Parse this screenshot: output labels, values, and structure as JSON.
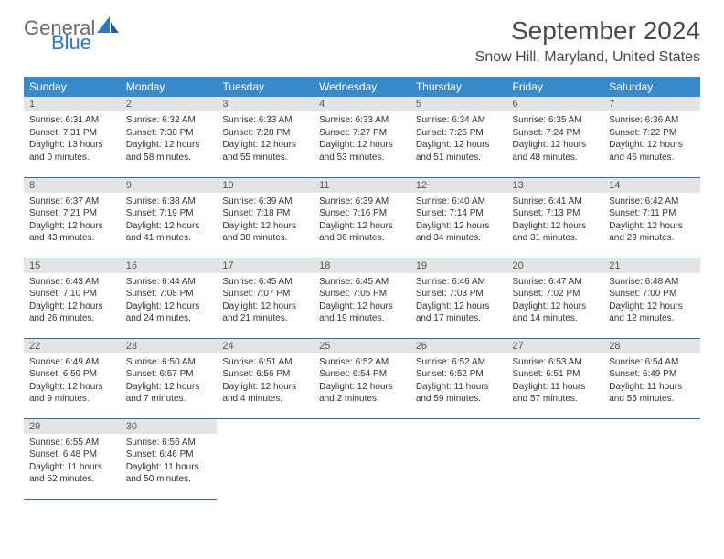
{
  "brand": {
    "part1": "General",
    "part2": "Blue"
  },
  "title": "September 2024",
  "location": "Snow Hill, Maryland, United States",
  "colors": {
    "header_bg": "#3a8ac9",
    "header_text": "#ffffff",
    "daynum_bg": "#e4e4e4",
    "row_border": "#3a6a9a",
    "logo_gray": "#6b6b6b",
    "logo_blue": "#2e78c2"
  },
  "weekdays": [
    "Sunday",
    "Monday",
    "Tuesday",
    "Wednesday",
    "Thursday",
    "Friday",
    "Saturday"
  ],
  "days": [
    {
      "n": 1,
      "sunrise": "6:31 AM",
      "sunset": "7:31 PM",
      "daylight": "13 hours and 0 minutes."
    },
    {
      "n": 2,
      "sunrise": "6:32 AM",
      "sunset": "7:30 PM",
      "daylight": "12 hours and 58 minutes."
    },
    {
      "n": 3,
      "sunrise": "6:33 AM",
      "sunset": "7:28 PM",
      "daylight": "12 hours and 55 minutes."
    },
    {
      "n": 4,
      "sunrise": "6:33 AM",
      "sunset": "7:27 PM",
      "daylight": "12 hours and 53 minutes."
    },
    {
      "n": 5,
      "sunrise": "6:34 AM",
      "sunset": "7:25 PM",
      "daylight": "12 hours and 51 minutes."
    },
    {
      "n": 6,
      "sunrise": "6:35 AM",
      "sunset": "7:24 PM",
      "daylight": "12 hours and 48 minutes."
    },
    {
      "n": 7,
      "sunrise": "6:36 AM",
      "sunset": "7:22 PM",
      "daylight": "12 hours and 46 minutes."
    },
    {
      "n": 8,
      "sunrise": "6:37 AM",
      "sunset": "7:21 PM",
      "daylight": "12 hours and 43 minutes."
    },
    {
      "n": 9,
      "sunrise": "6:38 AM",
      "sunset": "7:19 PM",
      "daylight": "12 hours and 41 minutes."
    },
    {
      "n": 10,
      "sunrise": "6:39 AM",
      "sunset": "7:18 PM",
      "daylight": "12 hours and 38 minutes."
    },
    {
      "n": 11,
      "sunrise": "6:39 AM",
      "sunset": "7:16 PM",
      "daylight": "12 hours and 36 minutes."
    },
    {
      "n": 12,
      "sunrise": "6:40 AM",
      "sunset": "7:14 PM",
      "daylight": "12 hours and 34 minutes."
    },
    {
      "n": 13,
      "sunrise": "6:41 AM",
      "sunset": "7:13 PM",
      "daylight": "12 hours and 31 minutes."
    },
    {
      "n": 14,
      "sunrise": "6:42 AM",
      "sunset": "7:11 PM",
      "daylight": "12 hours and 29 minutes."
    },
    {
      "n": 15,
      "sunrise": "6:43 AM",
      "sunset": "7:10 PM",
      "daylight": "12 hours and 26 minutes."
    },
    {
      "n": 16,
      "sunrise": "6:44 AM",
      "sunset": "7:08 PM",
      "daylight": "12 hours and 24 minutes."
    },
    {
      "n": 17,
      "sunrise": "6:45 AM",
      "sunset": "7:07 PM",
      "daylight": "12 hours and 21 minutes."
    },
    {
      "n": 18,
      "sunrise": "6:45 AM",
      "sunset": "7:05 PM",
      "daylight": "12 hours and 19 minutes."
    },
    {
      "n": 19,
      "sunrise": "6:46 AM",
      "sunset": "7:03 PM",
      "daylight": "12 hours and 17 minutes."
    },
    {
      "n": 20,
      "sunrise": "6:47 AM",
      "sunset": "7:02 PM",
      "daylight": "12 hours and 14 minutes."
    },
    {
      "n": 21,
      "sunrise": "6:48 AM",
      "sunset": "7:00 PM",
      "daylight": "12 hours and 12 minutes."
    },
    {
      "n": 22,
      "sunrise": "6:49 AM",
      "sunset": "6:59 PM",
      "daylight": "12 hours and 9 minutes."
    },
    {
      "n": 23,
      "sunrise": "6:50 AM",
      "sunset": "6:57 PM",
      "daylight": "12 hours and 7 minutes."
    },
    {
      "n": 24,
      "sunrise": "6:51 AM",
      "sunset": "6:56 PM",
      "daylight": "12 hours and 4 minutes."
    },
    {
      "n": 25,
      "sunrise": "6:52 AM",
      "sunset": "6:54 PM",
      "daylight": "12 hours and 2 minutes."
    },
    {
      "n": 26,
      "sunrise": "6:52 AM",
      "sunset": "6:52 PM",
      "daylight": "11 hours and 59 minutes."
    },
    {
      "n": 27,
      "sunrise": "6:53 AM",
      "sunset": "6:51 PM",
      "daylight": "11 hours and 57 minutes."
    },
    {
      "n": 28,
      "sunrise": "6:54 AM",
      "sunset": "6:49 PM",
      "daylight": "11 hours and 55 minutes."
    },
    {
      "n": 29,
      "sunrise": "6:55 AM",
      "sunset": "6:48 PM",
      "daylight": "11 hours and 52 minutes."
    },
    {
      "n": 30,
      "sunrise": "6:56 AM",
      "sunset": "6:46 PM",
      "daylight": "11 hours and 50 minutes."
    }
  ],
  "labels": {
    "sunrise": "Sunrise:",
    "sunset": "Sunset:",
    "daylight": "Daylight:"
  }
}
